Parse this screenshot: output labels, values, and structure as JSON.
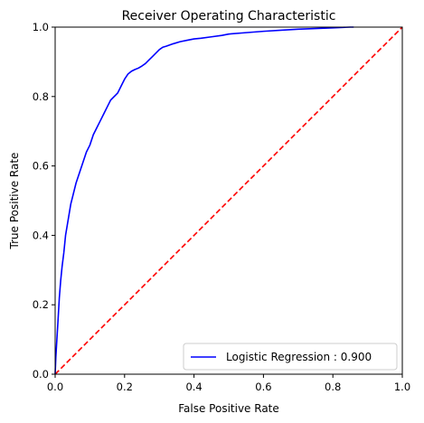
{
  "chart_data": {
    "type": "line",
    "title": "Receiver Operating Characteristic",
    "xlabel": "False Positive Rate",
    "ylabel": "True Positive Rate",
    "xlim": [
      0,
      1
    ],
    "ylim": [
      0,
      1
    ],
    "xticks": [
      "0.0",
      "0.2",
      "0.4",
      "0.6",
      "0.8",
      "1.0"
    ],
    "yticks": [
      "0.0",
      "0.2",
      "0.4",
      "0.6",
      "0.8",
      "1.0"
    ],
    "grid": false,
    "legend_position": "lower-right",
    "series": [
      {
        "name": "Logistic Regression : 0.900",
        "color": "#0000ff",
        "style": "solid",
        "x": [
          0.0,
          0.002,
          0.005,
          0.008,
          0.012,
          0.016,
          0.02,
          0.025,
          0.03,
          0.035,
          0.04,
          0.045,
          0.05,
          0.06,
          0.07,
          0.08,
          0.09,
          0.1,
          0.11,
          0.12,
          0.13,
          0.14,
          0.15,
          0.16,
          0.17,
          0.18,
          0.19,
          0.2,
          0.21,
          0.22,
          0.23,
          0.24,
          0.25,
          0.26,
          0.27,
          0.28,
          0.29,
          0.3,
          0.31,
          0.32,
          0.34,
          0.36,
          0.38,
          0.4,
          0.42,
          0.45,
          0.48,
          0.5,
          0.55,
          0.6,
          0.65,
          0.7,
          0.75,
          0.8,
          0.85,
          0.86
        ],
        "y": [
          0.0,
          0.05,
          0.1,
          0.15,
          0.22,
          0.27,
          0.31,
          0.35,
          0.4,
          0.43,
          0.46,
          0.49,
          0.51,
          0.55,
          0.58,
          0.61,
          0.64,
          0.66,
          0.69,
          0.71,
          0.73,
          0.75,
          0.77,
          0.79,
          0.8,
          0.81,
          0.83,
          0.85,
          0.865,
          0.873,
          0.878,
          0.882,
          0.888,
          0.895,
          0.905,
          0.915,
          0.925,
          0.935,
          0.942,
          0.945,
          0.952,
          0.958,
          0.962,
          0.966,
          0.968,
          0.972,
          0.976,
          0.98,
          0.984,
          0.988,
          0.991,
          0.994,
          0.996,
          0.998,
          1.0,
          1.0
        ]
      },
      {
        "name": "",
        "color": "#ff0000",
        "style": "dashed",
        "x": [
          0,
          1
        ],
        "y": [
          0,
          1
        ]
      }
    ]
  }
}
